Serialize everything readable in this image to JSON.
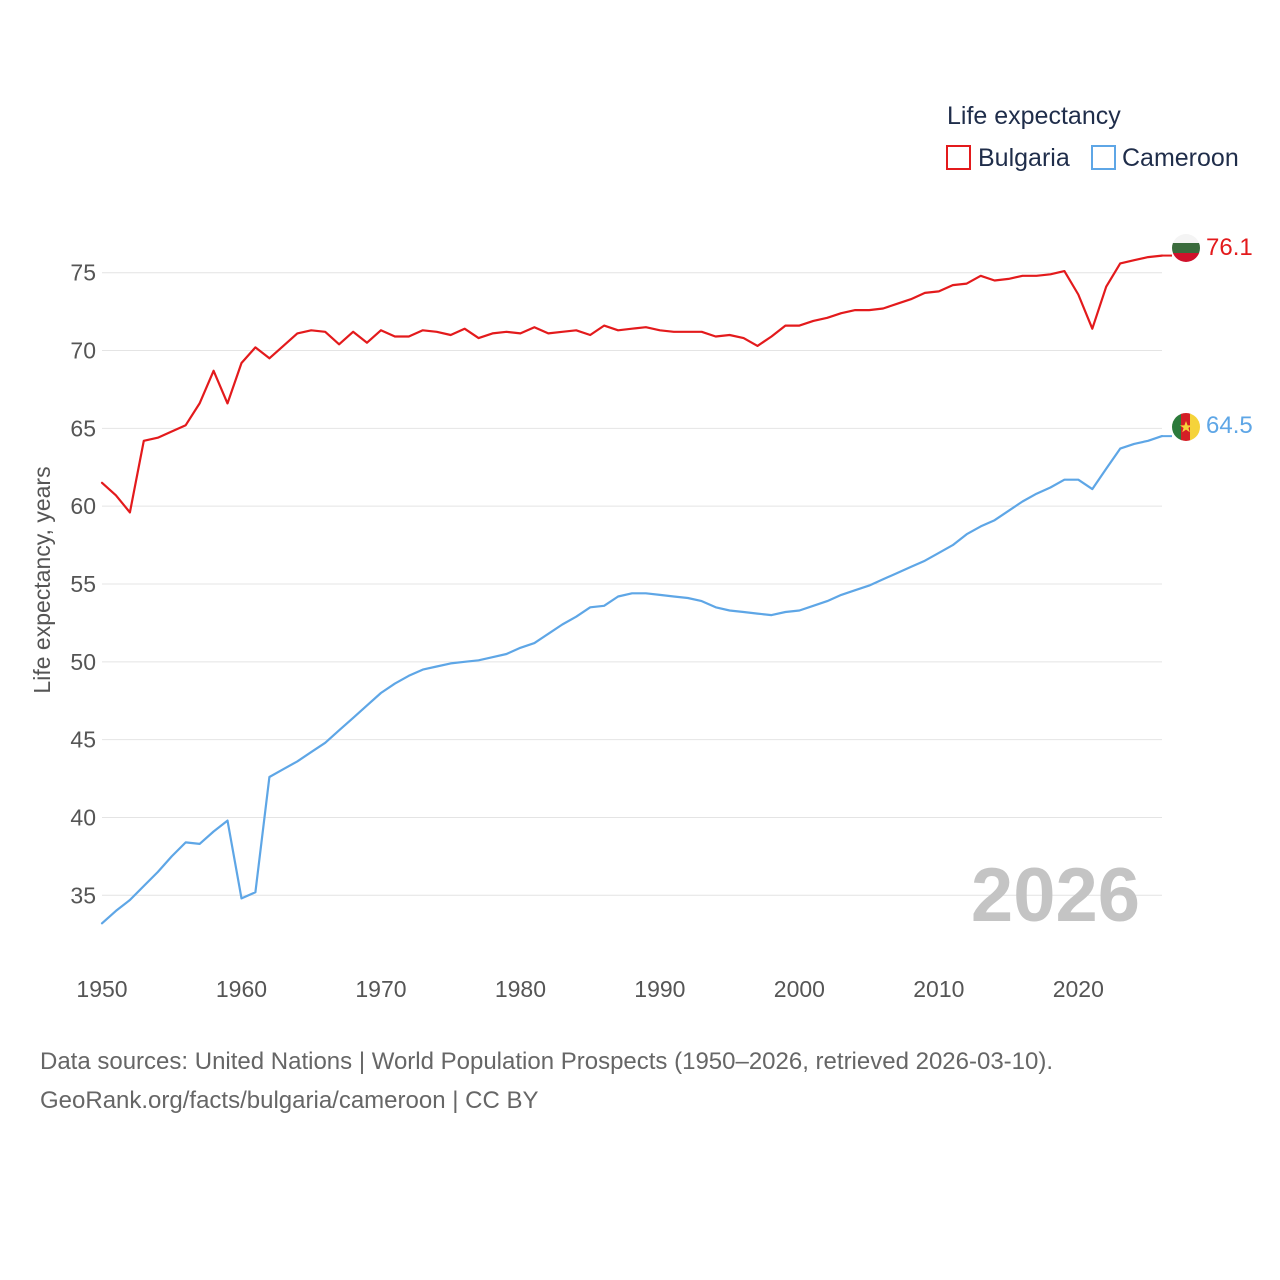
{
  "chart_data": {
    "type": "line",
    "legend_title": "Life expectancy",
    "ylabel": "Life expectancy, years",
    "xlim": [
      1950,
      2026
    ],
    "ylim": [
      32,
      78
    ],
    "xticks": [
      1950,
      1960,
      1970,
      1980,
      1990,
      2000,
      2010,
      2020
    ],
    "yticks": [
      35,
      40,
      45,
      50,
      55,
      60,
      65,
      70,
      75
    ],
    "watermark_year": "2026",
    "series": [
      {
        "name": "Bulgaria",
        "color": "#e31a1c",
        "end_label": "76.1",
        "flag": "bulgaria-flag-icon",
        "x": [
          1950,
          1951,
          1952,
          1953,
          1954,
          1955,
          1956,
          1957,
          1958,
          1959,
          1960,
          1961,
          1962,
          1963,
          1964,
          1965,
          1966,
          1967,
          1968,
          1969,
          1970,
          1971,
          1972,
          1973,
          1974,
          1975,
          1976,
          1977,
          1978,
          1979,
          1980,
          1981,
          1982,
          1983,
          1984,
          1985,
          1986,
          1987,
          1988,
          1989,
          1990,
          1991,
          1992,
          1993,
          1994,
          1995,
          1996,
          1997,
          1998,
          1999,
          2000,
          2001,
          2002,
          2003,
          2004,
          2005,
          2006,
          2007,
          2008,
          2009,
          2010,
          2011,
          2012,
          2013,
          2014,
          2015,
          2016,
          2017,
          2018,
          2019,
          2020,
          2021,
          2022,
          2023,
          2024,
          2025,
          2026
        ],
        "values": [
          61.5,
          60.7,
          59.6,
          64.2,
          64.4,
          64.8,
          65.2,
          66.6,
          68.7,
          66.6,
          69.2,
          70.2,
          69.5,
          70.3,
          71.1,
          71.3,
          71.2,
          70.4,
          71.2,
          70.5,
          71.3,
          70.9,
          70.9,
          71.3,
          71.2,
          71.0,
          71.4,
          70.8,
          71.1,
          71.2,
          71.1,
          71.5,
          71.1,
          71.2,
          71.3,
          71.0,
          71.6,
          71.3,
          71.4,
          71.5,
          71.3,
          71.2,
          71.2,
          71.2,
          70.9,
          71.0,
          70.8,
          70.3,
          70.9,
          71.6,
          71.6,
          71.9,
          72.1,
          72.4,
          72.6,
          72.6,
          72.7,
          73.0,
          73.3,
          73.7,
          73.8,
          74.2,
          74.3,
          74.8,
          74.5,
          74.6,
          74.8,
          74.8,
          74.9,
          75.1,
          73.6,
          71.4,
          74.1,
          75.6,
          75.8,
          76.0,
          76.1
        ]
      },
      {
        "name": "Cameroon",
        "color": "#5ea6e6",
        "end_label": "64.5",
        "flag": "cameroon-flag-icon",
        "x": [
          1950,
          1951,
          1952,
          1953,
          1954,
          1955,
          1956,
          1957,
          1958,
          1959,
          1960,
          1961,
          1962,
          1963,
          1964,
          1965,
          1966,
          1967,
          1968,
          1969,
          1970,
          1971,
          1972,
          1973,
          1974,
          1975,
          1976,
          1977,
          1978,
          1979,
          1980,
          1981,
          1982,
          1983,
          1984,
          1985,
          1986,
          1987,
          1988,
          1989,
          1990,
          1991,
          1992,
          1993,
          1994,
          1995,
          1996,
          1997,
          1998,
          1999,
          2000,
          2001,
          2002,
          2003,
          2004,
          2005,
          2006,
          2007,
          2008,
          2009,
          2010,
          2011,
          2012,
          2013,
          2014,
          2015,
          2016,
          2017,
          2018,
          2019,
          2020,
          2021,
          2022,
          2023,
          2024,
          2025,
          2026
        ],
        "values": [
          33.2,
          34.0,
          34.7,
          35.6,
          36.5,
          37.5,
          38.4,
          38.3,
          39.1,
          39.8,
          34.8,
          35.2,
          42.6,
          43.1,
          43.6,
          44.2,
          44.8,
          45.6,
          46.4,
          47.2,
          48.0,
          48.6,
          49.1,
          49.5,
          49.7,
          49.9,
          50.0,
          50.1,
          50.3,
          50.5,
          50.9,
          51.2,
          51.8,
          52.4,
          52.9,
          53.5,
          53.6,
          54.2,
          54.4,
          54.4,
          54.3,
          54.2,
          54.1,
          53.9,
          53.5,
          53.3,
          53.2,
          53.1,
          53.0,
          53.2,
          53.3,
          53.6,
          53.9,
          54.3,
          54.6,
          54.9,
          55.3,
          55.7,
          56.1,
          56.5,
          57.0,
          57.5,
          58.2,
          58.7,
          59.1,
          59.7,
          60.3,
          60.8,
          61.2,
          61.7,
          61.7,
          61.1,
          62.4,
          63.7,
          64.0,
          64.2,
          64.5
        ]
      }
    ]
  },
  "source": {
    "line1": "Data sources: United Nations | World Population Prospects (1950–2026, retrieved 2026-03-10).",
    "line2": "GeoRank.org/facts/bulgaria/cameroon | CC BY"
  }
}
